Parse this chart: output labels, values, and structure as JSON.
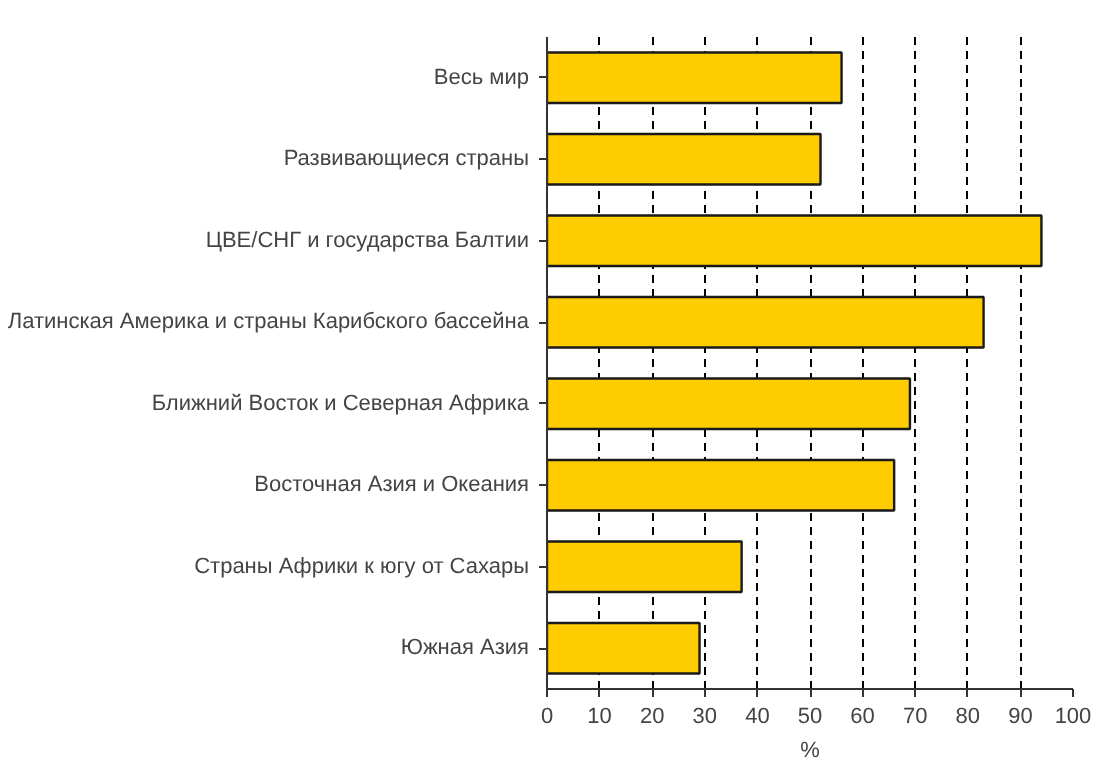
{
  "chart_data": {
    "type": "bar",
    "orientation": "horizontal",
    "categories": [
      "Весь мир",
      "Развивающиеся страны",
      "ЦВЕ/СНГ и государства Балтии",
      "Латинская Америка и страны Карибского бассейна",
      "Ближний Восток и Северная Африка",
      "Восточная Азия и Океания",
      "Страны Африки к югу от Сахары",
      "Южная Азия"
    ],
    "values": [
      56,
      52,
      94,
      83,
      69,
      66,
      37,
      29
    ],
    "color": "#ffcc00",
    "xlabel": "%",
    "xlim": [
      0,
      100
    ],
    "xticks": [
      0,
      10,
      20,
      30,
      40,
      50,
      60,
      70,
      80,
      90,
      100
    ],
    "grid": "x",
    "line_style": "dashed"
  }
}
